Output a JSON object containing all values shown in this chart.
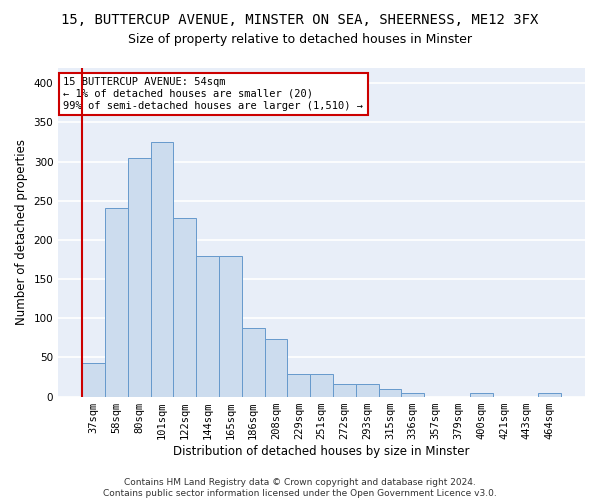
{
  "title1": "15, BUTTERCUP AVENUE, MINSTER ON SEA, SHEERNESS, ME12 3FX",
  "title2": "Size of property relative to detached houses in Minster",
  "xlabel": "Distribution of detached houses by size in Minster",
  "ylabel": "Number of detached properties",
  "bar_labels": [
    "37sqm",
    "58sqm",
    "80sqm",
    "101sqm",
    "122sqm",
    "144sqm",
    "165sqm",
    "186sqm",
    "208sqm",
    "229sqm",
    "251sqm",
    "272sqm",
    "293sqm",
    "315sqm",
    "336sqm",
    "357sqm",
    "379sqm",
    "400sqm",
    "421sqm",
    "443sqm",
    "464sqm"
  ],
  "bar_values": [
    43,
    241,
    305,
    325,
    228,
    180,
    180,
    87,
    73,
    29,
    29,
    16,
    16,
    10,
    4,
    0,
    0,
    4,
    0,
    0,
    4
  ],
  "bar_color": "#ccdcee",
  "bar_edge_color": "#6699cc",
  "highlight_color": "#cc0000",
  "highlight_index": 0,
  "annotation_text": "15 BUTTERCUP AVENUE: 54sqm\n← 1% of detached houses are smaller (20)\n99% of semi-detached houses are larger (1,510) →",
  "annotation_box_color": "#ffffff",
  "annotation_box_edge": "#cc0000",
  "ylim": [
    0,
    420
  ],
  "yticks": [
    0,
    50,
    100,
    150,
    200,
    250,
    300,
    350,
    400
  ],
  "footer": "Contains HM Land Registry data © Crown copyright and database right 2024.\nContains public sector information licensed under the Open Government Licence v3.0.",
  "bg_color": "#ffffff",
  "plot_bg_color": "#e8eef8",
  "grid_color": "#ffffff",
  "title1_fontsize": 10,
  "title2_fontsize": 9,
  "xlabel_fontsize": 8.5,
  "ylabel_fontsize": 8.5,
  "tick_fontsize": 7.5,
  "footer_fontsize": 6.5,
  "annot_fontsize": 7.5
}
